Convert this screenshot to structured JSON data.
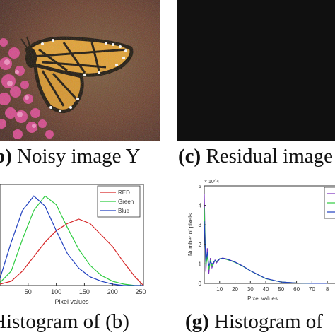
{
  "captions": {
    "b": {
      "tag": "b)",
      "text": "Noisy image Y"
    },
    "c": {
      "tag": "(c)",
      "text": "Residual image"
    },
    "f": {
      "tag": "",
      "text": "Histogram of (b)"
    },
    "g": {
      "tag": "(g)",
      "text": "Histogram of"
    }
  },
  "chart_data": [
    {
      "type": "line",
      "xlabel": "Pixel values",
      "ylabel": "",
      "xlim": [
        0,
        255
      ],
      "x_ticks": [
        "50",
        "100",
        "150",
        "200",
        "250"
      ],
      "legend": {
        "placement": "top-right",
        "entries": [
          "RED",
          "Green",
          "Blue"
        ]
      },
      "series": [
        {
          "name": "RED",
          "color": "#d62728",
          "x": [
            0,
            20,
            40,
            60,
            80,
            100,
            120,
            140,
            160,
            180,
            200,
            220,
            240,
            255
          ],
          "y": [
            0.01,
            0.03,
            0.1,
            0.2,
            0.3,
            0.38,
            0.43,
            0.46,
            0.43,
            0.35,
            0.27,
            0.16,
            0.06,
            0.0
          ]
        },
        {
          "name": "Green",
          "color": "#2ecc40",
          "x": [
            0,
            20,
            40,
            60,
            80,
            100,
            120,
            140,
            160,
            180,
            200,
            220,
            240,
            255
          ],
          "y": [
            0.02,
            0.1,
            0.32,
            0.52,
            0.62,
            0.56,
            0.4,
            0.25,
            0.14,
            0.07,
            0.03,
            0.01,
            0.0,
            0.0
          ]
        },
        {
          "name": "Blue",
          "color": "#1f3fbf",
          "x": [
            0,
            20,
            40,
            60,
            80,
            100,
            120,
            140,
            160,
            180,
            200,
            220,
            240,
            255
          ],
          "y": [
            0.05,
            0.3,
            0.52,
            0.62,
            0.55,
            0.38,
            0.22,
            0.12,
            0.06,
            0.03,
            0.01,
            0.0,
            0.0,
            0.0
          ]
        }
      ]
    },
    {
      "type": "line",
      "xlabel": "Pixel values",
      "ylabel": "Number of pixels",
      "y_multiplier": "× 10^4",
      "xlim": [
        0,
        85
      ],
      "ylim": [
        0,
        5
      ],
      "x_ticks": [
        "10",
        "20",
        "30",
        "40",
        "50",
        "60",
        "70",
        "8"
      ],
      "y_ticks": [
        "0",
        "1",
        "2",
        "3",
        "4",
        "5"
      ],
      "series": [
        {
          "name": "",
          "color": "#7b2fbf",
          "x": [
            0,
            1,
            2,
            3,
            4,
            5,
            6,
            7,
            8,
            9,
            10,
            12,
            15,
            20,
            25,
            30,
            35,
            40,
            50,
            60,
            70,
            80
          ],
          "y": [
            4.6,
            0.6,
            1.8,
            0.5,
            1.3,
            0.8,
            1.0,
            1.2,
            1.05,
            1.15,
            1.25,
            1.3,
            1.25,
            1.1,
            0.9,
            0.65,
            0.45,
            0.25,
            0.07,
            0.02,
            0.0,
            0.0
          ]
        },
        {
          "name": "",
          "color": "#2ecc40",
          "x": [
            0,
            1,
            2,
            3,
            4,
            5,
            6,
            7,
            8,
            9,
            10,
            12,
            15,
            20,
            25,
            30,
            35,
            40,
            50,
            60,
            70,
            80
          ],
          "y": [
            3.9,
            0.9,
            1.4,
            0.7,
            1.2,
            0.9,
            1.1,
            1.15,
            1.1,
            1.2,
            1.27,
            1.28,
            1.22,
            1.08,
            0.88,
            0.64,
            0.44,
            0.24,
            0.07,
            0.02,
            0.0,
            0.0
          ]
        },
        {
          "name": "",
          "color": "#1f3fbf",
          "x": [
            0,
            1,
            2,
            3,
            4,
            5,
            6,
            7,
            8,
            9,
            10,
            12,
            15,
            20,
            25,
            30,
            35,
            40,
            50,
            60,
            70,
            80
          ],
          "y": [
            3.2,
            1.1,
            1.6,
            0.9,
            1.1,
            1.0,
            1.05,
            1.18,
            1.12,
            1.18,
            1.26,
            1.29,
            1.24,
            1.09,
            0.89,
            0.65,
            0.45,
            0.25,
            0.07,
            0.02,
            0.0,
            0.0
          ]
        }
      ]
    }
  ]
}
